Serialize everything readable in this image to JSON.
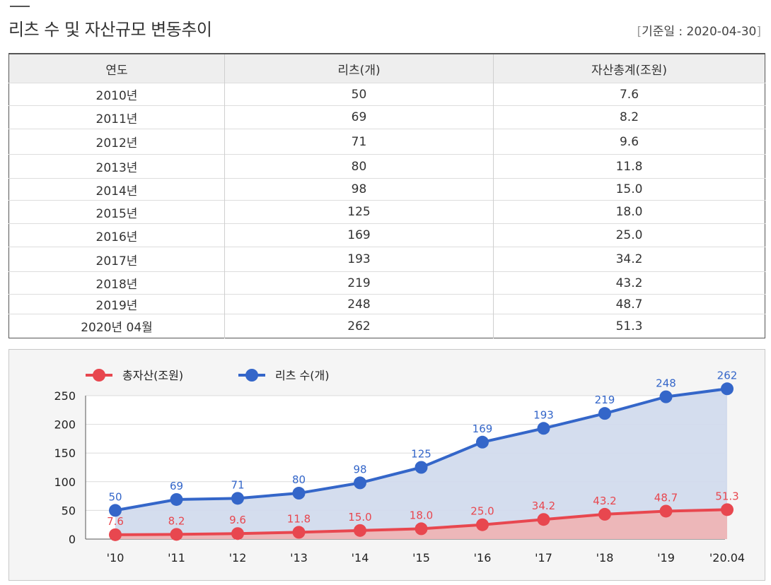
{
  "header": {
    "title": "리츠 수 및 자산규모 변동추이",
    "base_date_label": "기준일 : 2020-04-30"
  },
  "table": {
    "columns": [
      "연도",
      "리츠(개)",
      "자산총계(조원)"
    ],
    "rows": [
      [
        "2010년",
        "50",
        "7.6"
      ],
      [
        "2011년",
        "69",
        "8.2"
      ],
      [
        "2012년",
        "71",
        "9.6"
      ],
      [
        "2013년",
        "80",
        "11.8"
      ],
      [
        "2014년",
        "98",
        "15.0"
      ],
      [
        "2015년",
        "125",
        "18.0"
      ],
      [
        "2016년",
        "169",
        "25.0"
      ],
      [
        "2017년",
        "193",
        "34.2"
      ],
      [
        "2018년",
        "219",
        "43.2"
      ],
      [
        "2019년",
        "248",
        "48.7"
      ],
      [
        "2020년 04월",
        "262",
        "51.3"
      ]
    ]
  },
  "chart_data": {
    "type": "line",
    "title": "",
    "xlabel": "",
    "ylabel": "",
    "categories": [
      "'10",
      "'11",
      "'12",
      "'13",
      "'14",
      "'15",
      "'16",
      "'17",
      "'18",
      "'19",
      "'20.04"
    ],
    "series": [
      {
        "name": "총자산(조원)",
        "color": "#e8474f",
        "area_color": "#efb3b3",
        "values": [
          7.6,
          8.2,
          9.6,
          11.8,
          15.0,
          18.0,
          25.0,
          34.2,
          43.2,
          48.7,
          51.3
        ],
        "labels": [
          "7.6",
          "8.2",
          "9.6",
          "11.8",
          "15.0",
          "18.0",
          "25.0",
          "34.2",
          "43.2",
          "48.7",
          "51.3"
        ]
      },
      {
        "name": "리츠 수(개)",
        "color": "#3466c9",
        "area_color": "#cfd9ec",
        "values": [
          50,
          69,
          71,
          80,
          98,
          125,
          169,
          193,
          219,
          248,
          262
        ],
        "labels": [
          "50",
          "69",
          "71",
          "80",
          "98",
          "125",
          "169",
          "193",
          "219",
          "248",
          "262"
        ]
      }
    ],
    "yticks": [
      0,
      50,
      100,
      150,
      200,
      250
    ],
    "ylim": [
      0,
      250
    ],
    "grid": true,
    "legend": "top-left"
  }
}
